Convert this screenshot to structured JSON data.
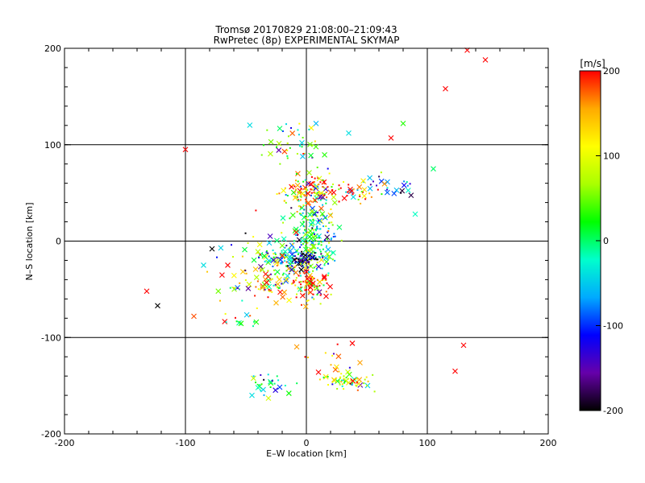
{
  "chart_data": {
    "type": "scatter",
    "title": "Tromsø 20170829 21:08:00–21:09:43",
    "subtitle": "RwPretec (8p) EXPERIMENTAL SKYMAP",
    "xlabel": "E–W location [km]",
    "ylabel": "N–S location [km]",
    "xlim": [
      -200,
      200
    ],
    "ylim": [
      -200,
      200
    ],
    "xticks": [
      "-200",
      "-100",
      "0",
      "100",
      "200"
    ],
    "yticks": [
      "-200",
      "-100",
      "0",
      "100",
      "200"
    ],
    "grid": true,
    "colorbar": {
      "label": "[m/s]",
      "range": [
        -200,
        200
      ],
      "ticks": [
        "200",
        "100",
        "0",
        "-100",
        "-200"
      ],
      "colors": [
        "#000000",
        "#6600aa",
        "#0000ff",
        "#00aaff",
        "#00ffcc",
        "#00ff00",
        "#aaff00",
        "#ffff00",
        "#ffaa00",
        "#ff0000"
      ]
    },
    "clusters": [
      {
        "cx": 5,
        "cy": 5,
        "sx": 10,
        "sy": 25,
        "n": 220,
        "v": 0
      },
      {
        "cx": 5,
        "cy": 52,
        "sx": 12,
        "sy": 8,
        "n": 120,
        "v": 150
      },
      {
        "cx": -20,
        "cy": -18,
        "sx": 10,
        "sy": 8,
        "n": 90,
        "v": -20
      },
      {
        "cx": -2,
        "cy": -20,
        "sx": 6,
        "sy": 5,
        "n": 50,
        "v": -200
      },
      {
        "cx": 2,
        "cy": -45,
        "sx": 8,
        "sy": 10,
        "n": 90,
        "v": 190
      },
      {
        "cx": -25,
        "cy": -45,
        "sx": 8,
        "sy": 8,
        "n": 50,
        "v": 150
      },
      {
        "cx": 35,
        "cy": -146,
        "sx": 10,
        "sy": 4,
        "n": 60,
        "v": 80
      },
      {
        "cx": -30,
        "cy": -148,
        "sx": 8,
        "sy": 6,
        "n": 25,
        "v": -10
      },
      {
        "cx": 70,
        "cy": 58,
        "sx": 10,
        "sy": 6,
        "n": 25,
        "v": -100
      },
      {
        "cx": 40,
        "cy": 50,
        "sx": 10,
        "sy": 6,
        "n": 30,
        "v": 190
      },
      {
        "cx": -10,
        "cy": 100,
        "sx": 15,
        "sy": 12,
        "n": 45,
        "v": 40
      },
      {
        "cx": -50,
        "cy": -30,
        "sx": 15,
        "sy": 25,
        "n": 45,
        "v": 130
      },
      {
        "cx": -55,
        "cy": -85,
        "sx": 6,
        "sy": 4,
        "n": 8,
        "v": 20
      },
      {
        "cx": 20,
        "cy": -120,
        "sx": 10,
        "sy": 10,
        "n": 12,
        "v": 190
      }
    ],
    "outliers": [
      {
        "x": 133,
        "y": 198,
        "v": 200
      },
      {
        "x": 148,
        "y": 188,
        "v": 200
      },
      {
        "x": 115,
        "y": 158,
        "v": 200
      },
      {
        "x": -100,
        "y": 95,
        "v": 200
      },
      {
        "x": -132,
        "y": -52,
        "v": 200
      },
      {
        "x": -123,
        "y": -67,
        "v": -200
      },
      {
        "x": 90,
        "y": 28,
        "v": -20
      },
      {
        "x": 105,
        "y": 75,
        "v": 0
      },
      {
        "x": 80,
        "y": 122,
        "v": 30
      },
      {
        "x": 70,
        "y": 107,
        "v": 200
      },
      {
        "x": 35,
        "y": 112,
        "v": -40
      },
      {
        "x": 8,
        "y": 122,
        "v": -60
      },
      {
        "x": -85,
        "y": -25,
        "v": -40
      },
      {
        "x": -78,
        "y": -8,
        "v": -200
      },
      {
        "x": -65,
        "y": -25,
        "v": 200
      },
      {
        "x": -93,
        "y": -78,
        "v": 180
      },
      {
        "x": 130,
        "y": -108,
        "v": 200
      },
      {
        "x": 123,
        "y": -135,
        "v": 200
      },
      {
        "x": -45,
        "y": -160,
        "v": -40
      },
      {
        "x": -40,
        "y": -152,
        "v": -20
      },
      {
        "x": 38,
        "y": -106,
        "v": 200
      },
      {
        "x": 10,
        "y": -136,
        "v": 200
      }
    ]
  }
}
